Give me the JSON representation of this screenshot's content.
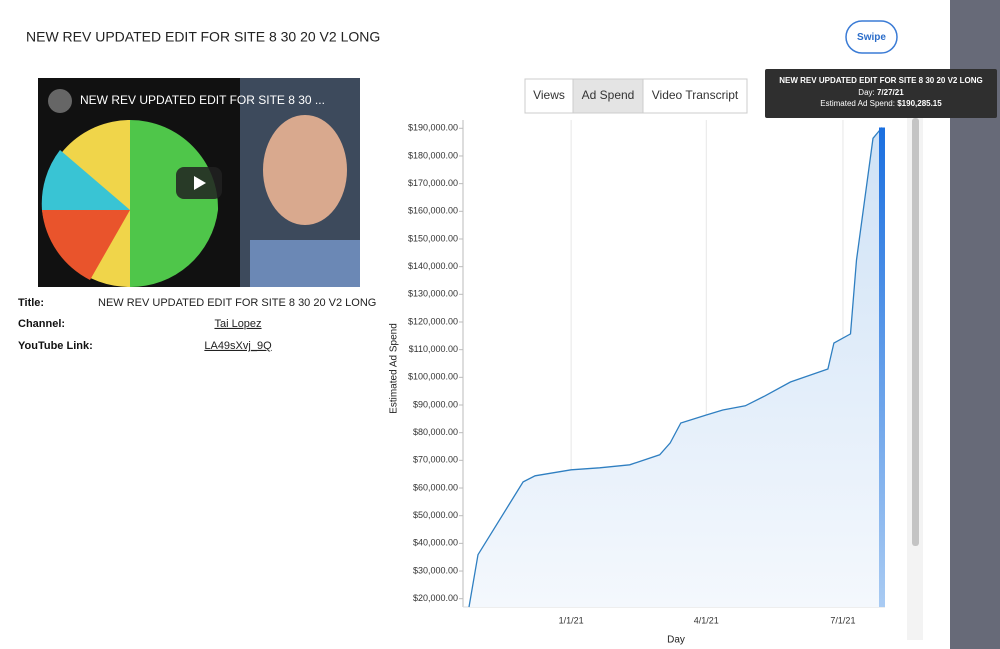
{
  "header": {
    "title": "NEW REV UPDATED EDIT FOR SITE 8 30 20 V2 LONG",
    "button": "Swipe"
  },
  "video": {
    "overlay_title": "NEW REV UPDATED EDIT FOR SITE 8 30 ..."
  },
  "details": {
    "rows": [
      [
        "Title:",
        "NEW REV UPDATED EDIT FOR SITE 8 30 20 V2 LONG"
      ],
      [
        "Channel:",
        "Tai Lopez"
      ],
      [
        "YouTube Link:",
        "LA49sXvj_9Q"
      ]
    ]
  },
  "tabs": [
    "Views",
    "Ad Spend",
    "Video Transcript"
  ],
  "tooltip": {
    "title": "NEW REV UPDATED EDIT FOR SITE 8 30 20 V2 LONG",
    "lines": [
      [
        "Day:",
        "7/27/21"
      ],
      [
        "Estimated Ad Spend:",
        "$190,285.15"
      ]
    ]
  },
  "chart_data": {
    "type": "area",
    "x_label": "Day",
    "y_label": "Estimated Ad Spend",
    "x": [
      "10/25/20",
      "10/31/20",
      "11/30/20",
      "12/8/20",
      "1/1/21",
      "1/20/21",
      "2/9/21",
      "3/1/21",
      "3/8/21",
      "3/15/21",
      "4/1/21",
      "4/12/21",
      "4/27/21",
      "5/10/21",
      "5/27/21",
      "6/21/21",
      "6/25/21",
      "7/6/21",
      "7/10/21",
      "7/21/21",
      "7/27/21"
    ],
    "values": [
      17000,
      35900,
      62200,
      64400,
      66600,
      67300,
      68400,
      72000,
      76300,
      83500,
      86400,
      88200,
      89700,
      93300,
      98300,
      103000,
      112400,
      115700,
      142400,
      186400,
      190285.15
    ],
    "color": "#2f7fc1",
    "xlim": [
      "10/25/20",
      "7/29/21"
    ],
    "xticks": [
      "1/1/21",
      "4/1/21",
      "7/1/21"
    ],
    "ylim": [
      17000,
      193000
    ],
    "yticks": [
      {
        "value": 20000,
        "label": "$20,000.00"
      },
      {
        "value": 30000,
        "label": "$30,000.00"
      },
      {
        "value": 40000,
        "label": "$40,000.00"
      },
      {
        "value": 50000,
        "label": "$50,000.00"
      },
      {
        "value": 60000,
        "label": "$60,000.00"
      },
      {
        "value": 70000,
        "label": "$70,000.00"
      },
      {
        "value": 80000,
        "label": "$80,000.00"
      },
      {
        "value": 90000,
        "label": "$90,000.00"
      },
      {
        "value": 100000,
        "label": "$100,000.00"
      },
      {
        "value": 110000,
        "label": "$110,000.00"
      },
      {
        "value": 120000,
        "label": "$120,000.00"
      },
      {
        "value": 130000,
        "label": "$130,000.00"
      },
      {
        "value": 140000,
        "label": "$140,000.00"
      },
      {
        "value": 150000,
        "label": "$150,000.00"
      },
      {
        "value": 160000,
        "label": "$160,000.00"
      },
      {
        "value": 170000,
        "label": "$170,000.00"
      },
      {
        "value": 180000,
        "label": "$180,000.00"
      },
      {
        "value": 190000,
        "label": "$190,000.00"
      }
    ],
    "grid": "x"
  }
}
